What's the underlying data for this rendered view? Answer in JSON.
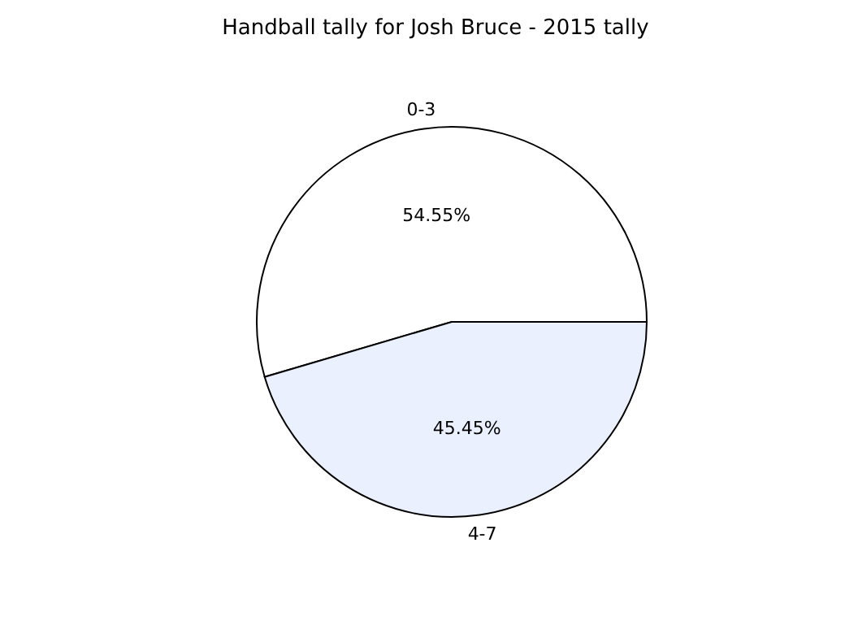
{
  "chart_data": {
    "type": "pie",
    "title": "Handball tally for Josh Bruce - 2015 tally",
    "categories": [
      "0-3",
      "4-7"
    ],
    "values": [
      54.55,
      45.45
    ],
    "value_labels": [
      "54.55%",
      "45.45%"
    ],
    "colors": [
      "#ffffff",
      "#eaf0fd"
    ],
    "legend": false
  }
}
